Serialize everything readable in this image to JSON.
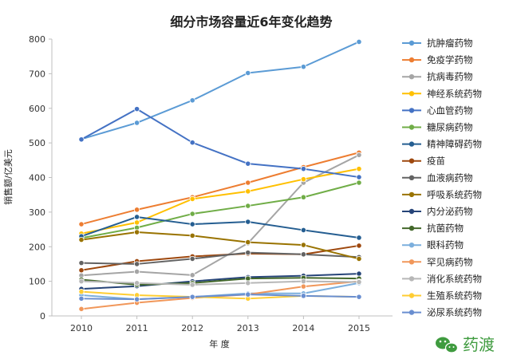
{
  "chart_data": {
    "type": "line",
    "title": "细分市场容量近6年变化趋势",
    "xlabel": "年 度",
    "ylabel": "销售额/亿美元",
    "categories": [
      "2010",
      "2011",
      "2012",
      "2013",
      "2014",
      "2015"
    ],
    "ylim": [
      0,
      800
    ],
    "yticks": [
      0,
      100,
      200,
      300,
      400,
      500,
      600,
      700,
      800
    ],
    "grid": false,
    "legend_position": "right",
    "series": [
      {
        "name": "抗肿瘤药物",
        "color": "#5b9bd5",
        "values": [
          511,
          558,
          623,
          702,
          720,
          792
        ]
      },
      {
        "name": "免疫学药物",
        "color": "#ed7d31",
        "values": [
          265,
          307,
          343,
          385,
          430,
          472
        ]
      },
      {
        "name": "抗病毒药物",
        "color": "#a5a5a5",
        "values": [
          117,
          128,
          118,
          210,
          385,
          465
        ]
      },
      {
        "name": "神经系统药物",
        "color": "#ffc000",
        "values": [
          238,
          270,
          338,
          360,
          395,
          425
        ]
      },
      {
        "name": "心血管药物",
        "color": "#4472c4",
        "values": [
          510,
          598,
          501,
          440,
          425,
          401
        ]
      },
      {
        "name": "糖尿病药物",
        "color": "#70ad47",
        "values": [
          225,
          255,
          295,
          318,
          343,
          385
        ]
      },
      {
        "name": "精神障碍药物",
        "color": "#255e91",
        "values": [
          230,
          286,
          265,
          272,
          248,
          226
        ]
      },
      {
        "name": "疫苗",
        "color": "#9e480e",
        "values": [
          132,
          158,
          172,
          180,
          178,
          203
        ]
      },
      {
        "name": "血液病药物",
        "color": "#636363",
        "values": [
          153,
          150,
          165,
          183,
          178,
          170
        ]
      },
      {
        "name": "呼吸系统药物",
        "color": "#997300",
        "values": [
          220,
          242,
          232,
          213,
          205,
          165
        ]
      },
      {
        "name": "内分泌药物",
        "color": "#264478",
        "values": [
          78,
          86,
          100,
          112,
          116,
          122
        ]
      },
      {
        "name": "抗菌药物",
        "color": "#43682b",
        "values": [
          105,
          90,
          95,
          108,
          110,
          108
        ]
      },
      {
        "name": "眼科药物",
        "color": "#7cafdd",
        "values": [
          60,
          48,
          55,
          65,
          65,
          95
        ]
      },
      {
        "name": "罕见病药物",
        "color": "#f1975a",
        "values": [
          20,
          38,
          52,
          62,
          85,
          100
        ]
      },
      {
        "name": "消化系统药物",
        "color": "#b7b7b7",
        "values": [
          100,
          95,
          90,
          95,
          100,
          98
        ]
      },
      {
        "name": "生殖系统药物",
        "color": "#ffcd33",
        "values": [
          70,
          60,
          55,
          50,
          58,
          55
        ]
      },
      {
        "name": "泌尿系统药物",
        "color": "#698ed0",
        "values": [
          50,
          48,
          55,
          62,
          58,
          55
        ]
      }
    ]
  },
  "watermark": {
    "text": "药渡",
    "icon": "wechat-icon",
    "color": "#3f9b3f"
  }
}
